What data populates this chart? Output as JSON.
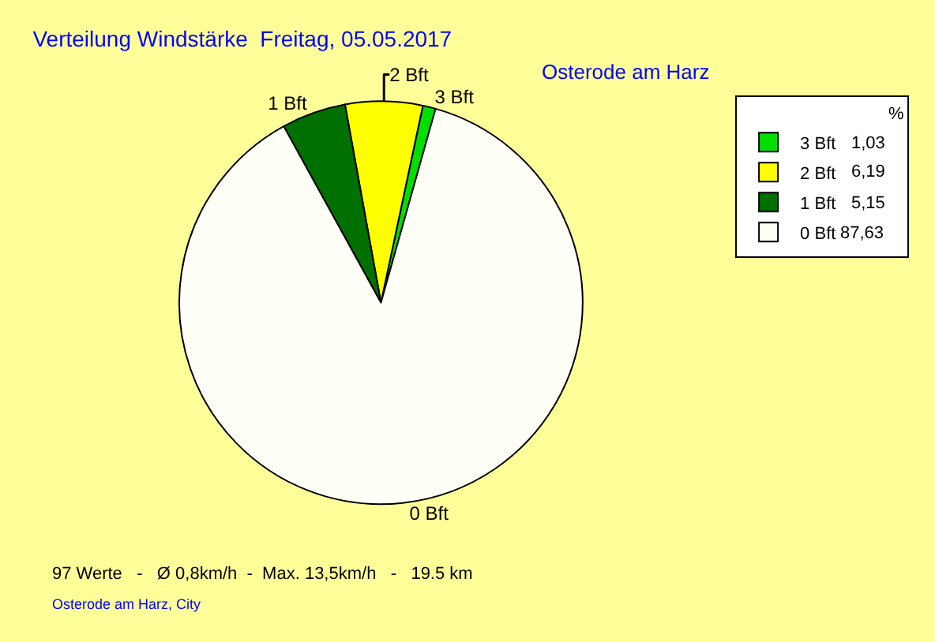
{
  "chart_data": {
    "type": "pie",
    "title": "Verteilung Windstärke  Freitag, 05.05.2017",
    "subtitle": "Osterode am Harz",
    "categories": [
      "3 Bft",
      "2 Bft",
      "1 Bft",
      "0 Bft"
    ],
    "values": [
      1.03,
      6.19,
      5.15,
      87.63
    ],
    "value_labels": [
      "1,03",
      "6,19",
      "5,15",
      "87,63"
    ],
    "colors": [
      "#00e000",
      "#ffff00",
      "#007000",
      "#fffff8"
    ],
    "legend_title": "%",
    "legend": "top right",
    "annotations": [
      "97 Werte   -   Ø 0,8km/h  -  Max. 13,5km/h   -   19.5 km",
      "Osterode am Harz, City"
    ]
  }
}
